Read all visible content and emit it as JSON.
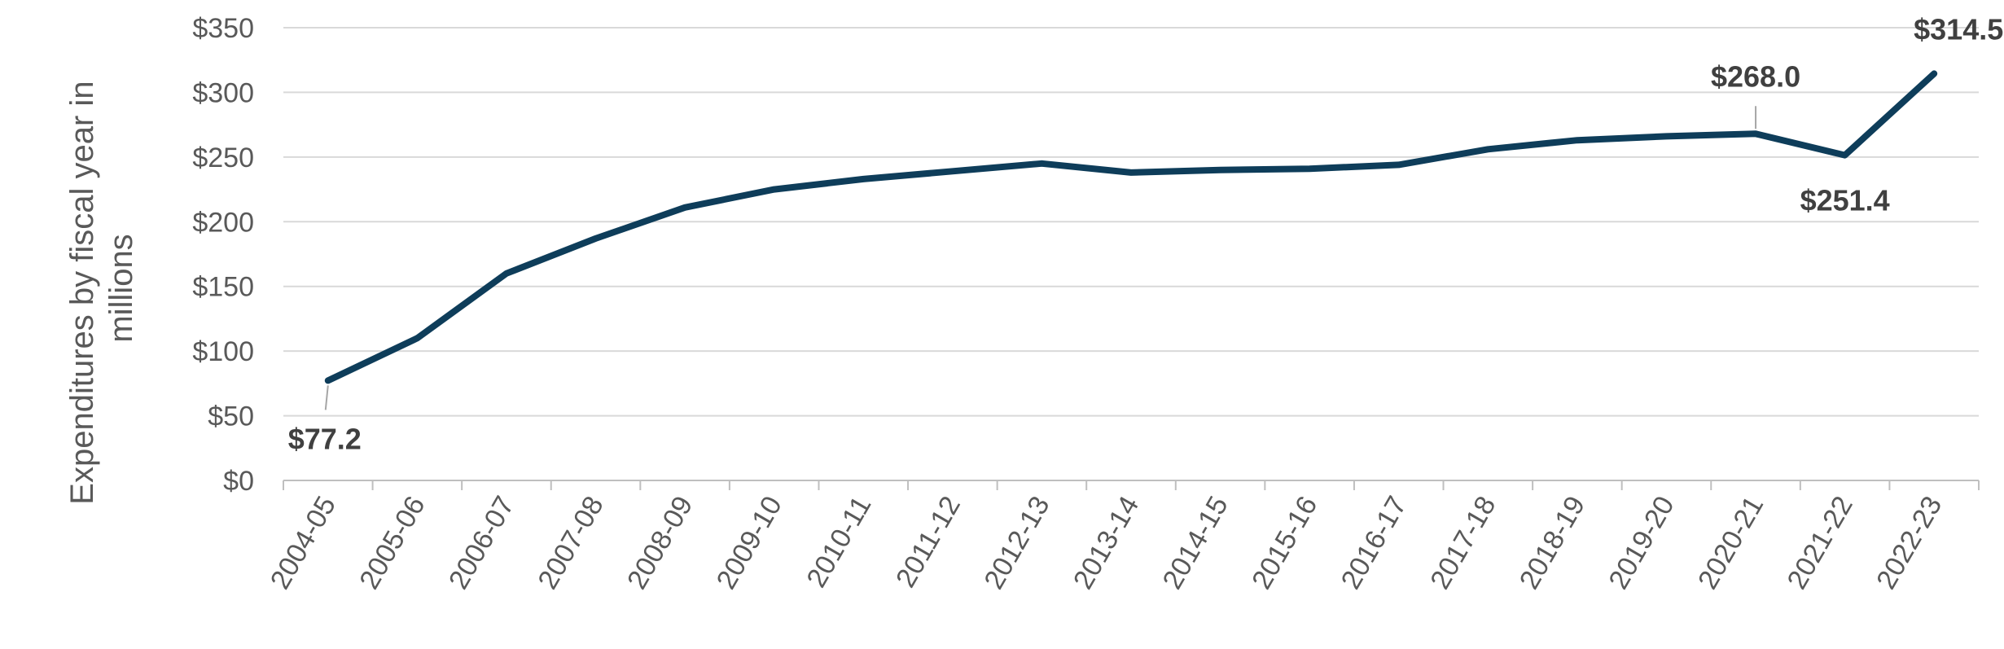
{
  "chart_data": {
    "type": "line",
    "categories": [
      "2004-05",
      "2005-06",
      "2006-07",
      "2007-08",
      "2008-09",
      "2009-10",
      "2010-11",
      "2011-12",
      "2012-13",
      "2013-14",
      "2014-15",
      "2015-16",
      "2016-17",
      "2017-18",
      "2018-19",
      "2019-20",
      "2020-21",
      "2021-22",
      "2022-23"
    ],
    "series": [
      {
        "values": [
          77.2,
          110,
          160,
          187,
          211,
          225,
          233,
          239,
          245,
          238,
          240,
          241,
          244,
          256,
          263,
          266,
          268.0,
          251.4,
          314.5
        ]
      }
    ],
    "ylabel_lines": [
      "Expenditures by fiscal year in",
      "millions"
    ],
    "y_ticks": [
      "$0",
      "$50",
      "$100",
      "$150",
      "$200",
      "$250",
      "$300",
      "$350"
    ],
    "ylim": [
      0,
      350
    ],
    "grid": true,
    "legend": "none",
    "line_color": "#0e3d5a",
    "annotations": [
      {
        "category": "2004-05",
        "text": "$77.2",
        "position": "below",
        "leader": true
      },
      {
        "category": "2020-21",
        "text": "$268.0",
        "position": "above",
        "leader": true
      },
      {
        "category": "2021-22",
        "text": "$251.4",
        "position": "below",
        "leader": false
      },
      {
        "category": "2022-23",
        "text": "$314.5",
        "position": "above",
        "leader": false
      }
    ]
  }
}
